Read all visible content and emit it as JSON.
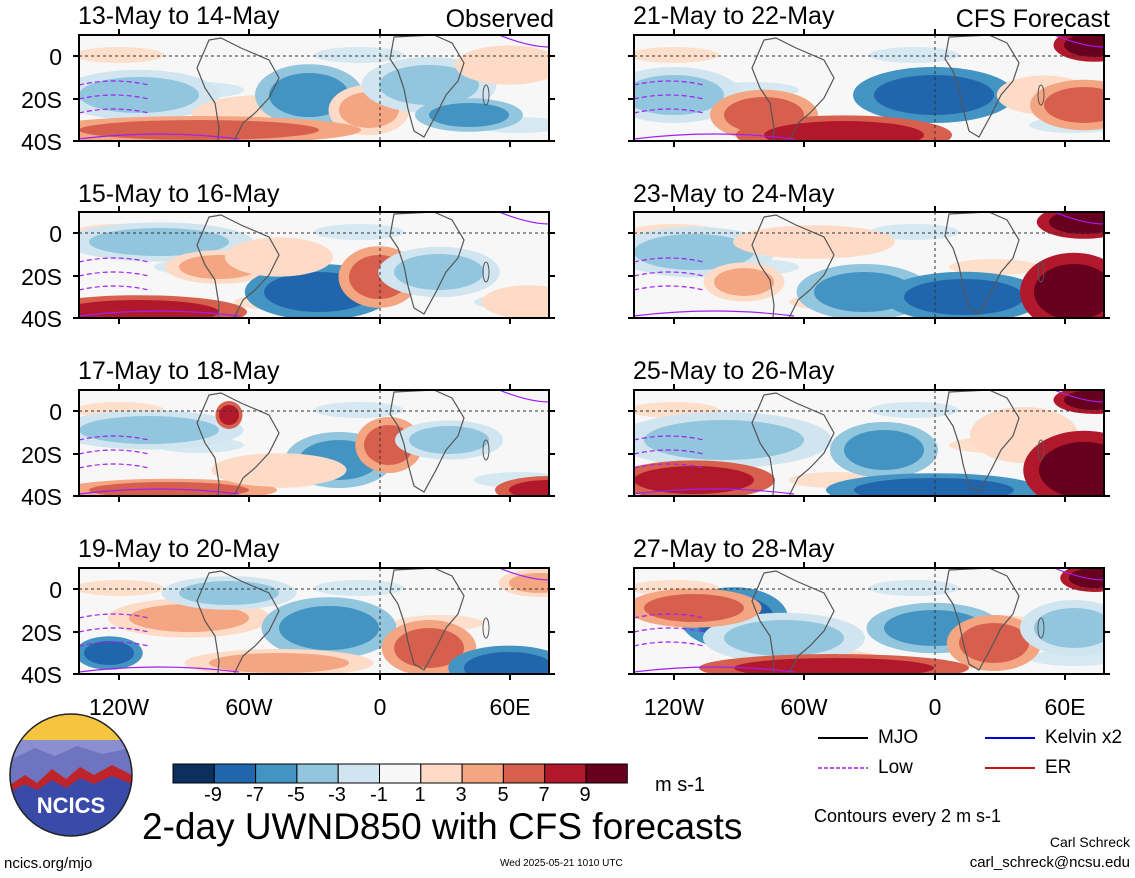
{
  "col_labels": {
    "left": "Observed",
    "right": "CFS Forecast"
  },
  "panels": [
    {
      "title": "13-May to 14-May"
    },
    {
      "title": "15-May to 16-May"
    },
    {
      "title": "17-May to 18-May"
    },
    {
      "title": "19-May to 20-May"
    },
    {
      "title": "21-May to 22-May"
    },
    {
      "title": "23-May to 24-May"
    },
    {
      "title": "25-May to 26-May"
    },
    {
      "title": "27-May to 28-May"
    }
  ],
  "lat_ticks": [
    "0",
    "20S",
    "40S"
  ],
  "lon_ticks": [
    "120W",
    "60W",
    "0",
    "60E"
  ],
  "colorbar": {
    "colors": [
      "#0d2f5e",
      "#2166ac",
      "#4393c3",
      "#92c5de",
      "#d1e5f0",
      "#f7f7f7",
      "#fddbc7",
      "#f4a582",
      "#d6604d",
      "#b2182b",
      "#67001f"
    ],
    "labels": [
      "-9",
      "-7",
      "-5",
      "-3",
      "-1",
      "1",
      "3",
      "5",
      "7",
      "9"
    ],
    "units": "m s-1"
  },
  "legend": [
    {
      "label": "MJO",
      "color": "#000000"
    },
    {
      "label": "Kelvin x2",
      "color": "#0000dd"
    },
    {
      "label": "Low",
      "color": "#a020f0"
    },
    {
      "label": "ER",
      "color": "#cc1111"
    }
  ],
  "contour_note": "Contours every 2 m s-1",
  "title": "2-day UWND850 with CFS forecasts",
  "logo_text": "NCICS",
  "footer": {
    "left": "ncics.org/mjo",
    "center": "Wed 2025-05-21 1010 UTC",
    "author": "Carl Schreck",
    "email": "carl_schreck@ncsu.edu"
  }
}
